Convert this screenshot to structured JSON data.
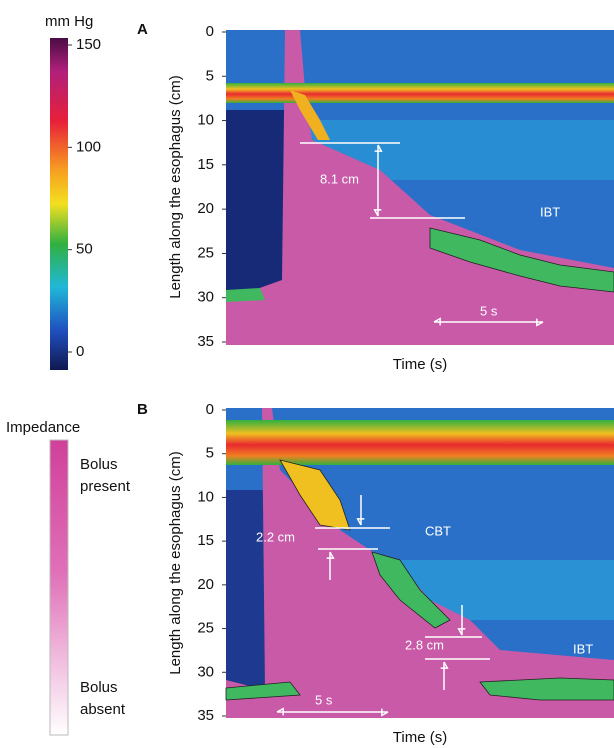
{
  "colorbar": {
    "title": "mm Hg",
    "lim": [
      0,
      150
    ],
    "ticks": [
      0,
      50,
      100,
      150
    ]
  },
  "impedance_legend": {
    "title": "Impedance",
    "high": "Bolus present",
    "low": "Bolus absent"
  },
  "chart_data": [
    {
      "type": "heatmap",
      "panel": "A",
      "y_label": "Length along the esophagus (cm)",
      "x_label": "Time (s)",
      "ylim": [
        0,
        35
      ],
      "yticks": [
        0,
        5,
        10,
        15,
        20,
        25,
        30,
        35
      ],
      "annotations": [
        "8.1 cm",
        "IBT",
        "5 s"
      ]
    },
    {
      "type": "heatmap",
      "panel": "B",
      "y_label": "Length along the esophagus (cm)",
      "x_label": "Time (s)",
      "ylim": [
        0,
        35
      ],
      "yticks": [
        0,
        5,
        10,
        15,
        20,
        25,
        30,
        35
      ],
      "annotations": [
        "2.2 cm",
        "CBT",
        "2.8 cm",
        "IBT",
        "5 s"
      ]
    }
  ]
}
